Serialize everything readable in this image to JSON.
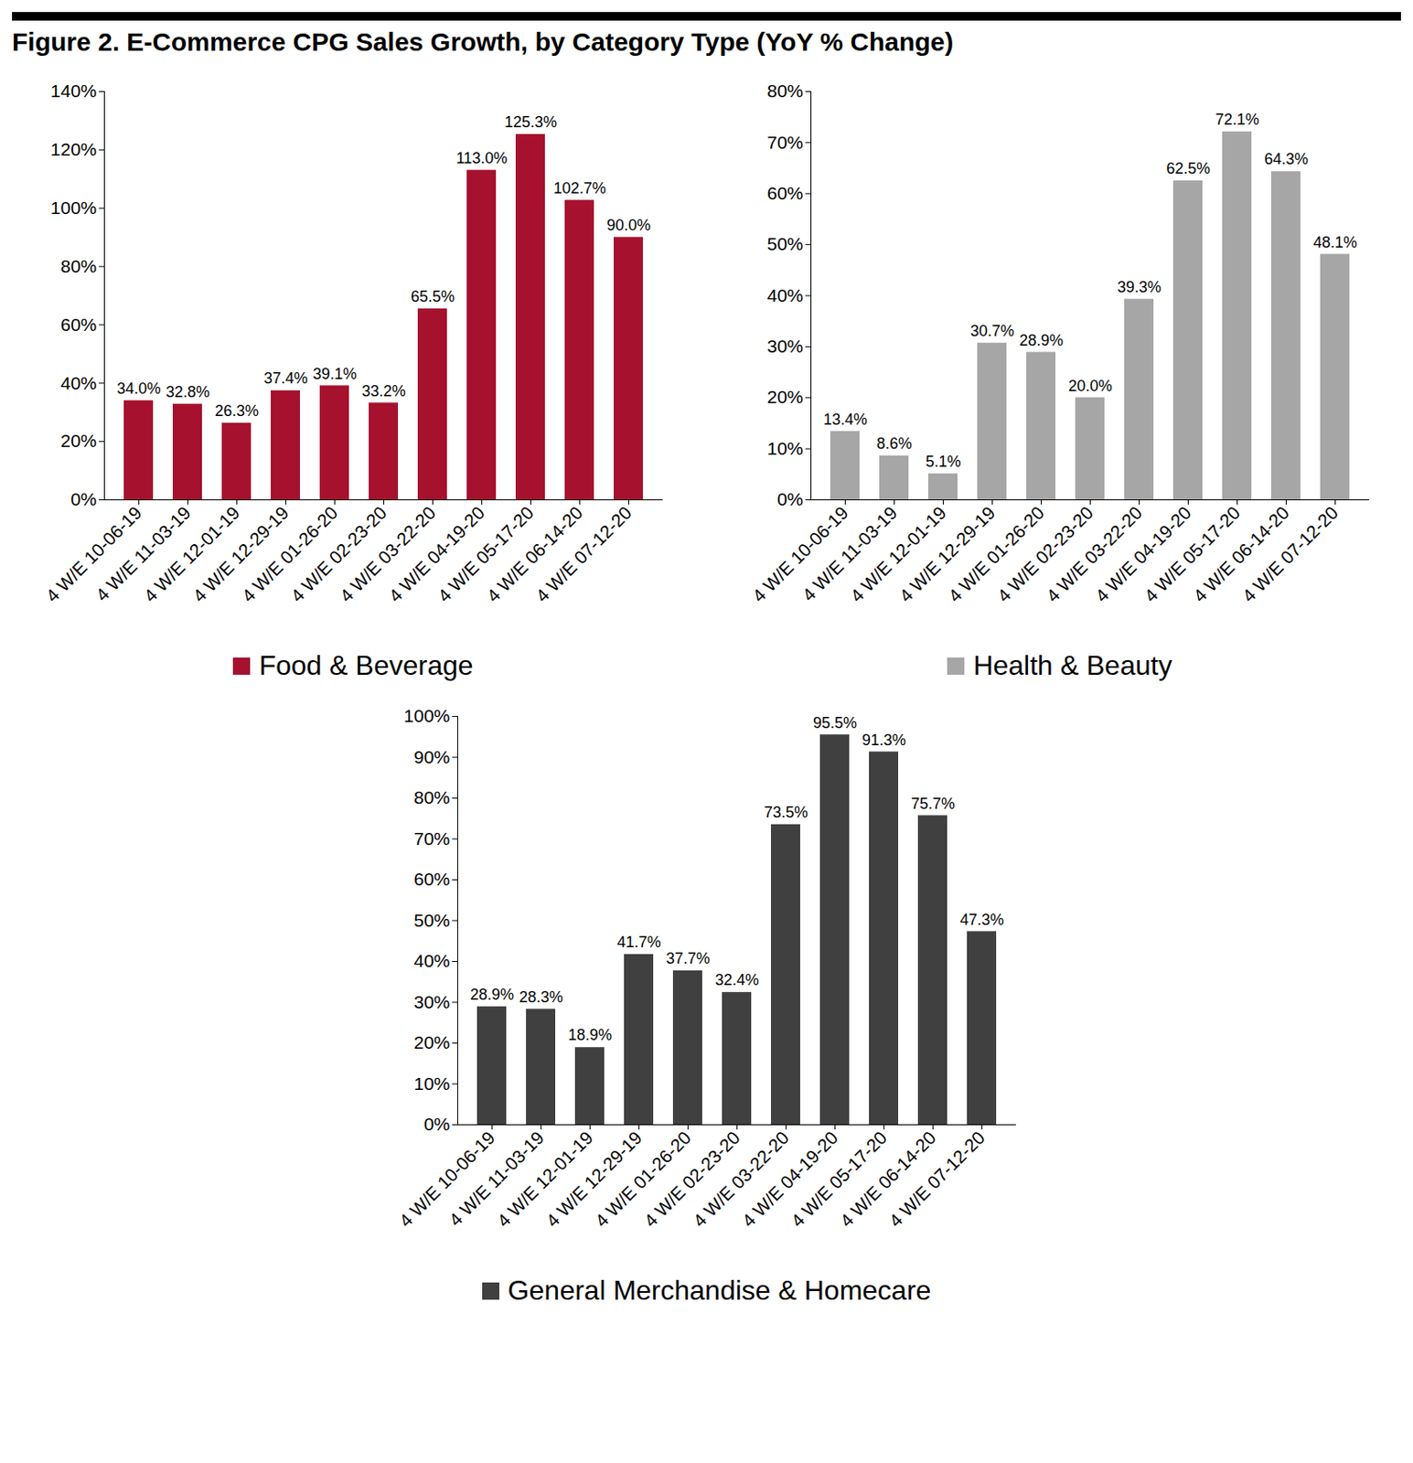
{
  "chart_data": [
    {
      "type": "bar",
      "title": "Figure 2. E-Commerce CPG Sales Growth, by Category Type (YoY % Change)",
      "categories": [
        "4 W/E 10-06-19",
        "4 W/E 11-03-19",
        "4 W/E 12-01-19",
        "4 W/E 12-29-19",
        "4 W/E 01-26-20",
        "4 W/E 02-23-20",
        "4 W/E 03-22-20",
        "4 W/E 04-19-20",
        "4 W/E 05-17-20",
        "4 W/E 06-14-20",
        "4 W/E 07-12-20"
      ],
      "series": [
        {
          "name": "Food & Beverage",
          "color": "#a6112e",
          "values": [
            34.0,
            32.8,
            26.3,
            37.4,
            39.1,
            33.2,
            65.5,
            113.0,
            125.3,
            102.7,
            90.0
          ],
          "value_labels": [
            "34.0%",
            "32.8%",
            "26.3%",
            "37.4%",
            "39.1%",
            "33.2%",
            "65.5%",
            "113.0%",
            "125.3%",
            "102.7%",
            "90.0%"
          ]
        }
      ],
      "ylim": [
        0,
        140
      ],
      "yticks": [
        {
          "value": 0,
          "label": "0%"
        },
        {
          "value": 20,
          "label": "20%"
        },
        {
          "value": 40,
          "label": "40%"
        },
        {
          "value": 60,
          "label": "60%"
        },
        {
          "value": 80,
          "label": "80%"
        },
        {
          "value": 100,
          "label": "100%"
        },
        {
          "value": 120,
          "label": "120%"
        },
        {
          "value": 140,
          "label": "140%"
        }
      ],
      "grid": false,
      "legend": "bottom",
      "data_labels": true
    },
    {
      "type": "bar",
      "categories": [
        "4 W/E 10-06-19",
        "4 W/E 11-03-19",
        "4 W/E 12-01-19",
        "4 W/E 12-29-19",
        "4 W/E 01-26-20",
        "4 W/E 02-23-20",
        "4 W/E 03-22-20",
        "4 W/E 04-19-20",
        "4 W/E 05-17-20",
        "4 W/E 06-14-20",
        "4 W/E 07-12-20"
      ],
      "series": [
        {
          "name": "Health & Beauty",
          "color": "#a6a6a6",
          "values": [
            13.4,
            8.6,
            5.1,
            30.7,
            28.9,
            20.0,
            39.3,
            62.5,
            72.1,
            64.3,
            48.1
          ],
          "value_labels": [
            "13.4%",
            "8.6%",
            "5.1%",
            "30.7%",
            "28.9%",
            "20.0%",
            "39.3%",
            "62.5%",
            "72.1%",
            "64.3%",
            "48.1%"
          ]
        }
      ],
      "ylim": [
        0,
        80
      ],
      "yticks": [
        {
          "value": 0,
          "label": "0%"
        },
        {
          "value": 10,
          "label": "10%"
        },
        {
          "value": 20,
          "label": "20%"
        },
        {
          "value": 30,
          "label": "30%"
        },
        {
          "value": 40,
          "label": "40%"
        },
        {
          "value": 50,
          "label": "50%"
        },
        {
          "value": 60,
          "label": "60%"
        },
        {
          "value": 70,
          "label": "70%"
        },
        {
          "value": 80,
          "label": "80%"
        }
      ],
      "grid": false,
      "legend": "bottom",
      "data_labels": true
    },
    {
      "type": "bar",
      "categories": [
        "4 W/E 10-06-19",
        "4 W/E 11-03-19",
        "4 W/E 12-01-19",
        "4 W/E 12-29-19",
        "4 W/E 01-26-20",
        "4 W/E 02-23-20",
        "4 W/E 03-22-20",
        "4 W/E 04-19-20",
        "4 W/E 05-17-20",
        "4 W/E 06-14-20",
        "4 W/E 07-12-20"
      ],
      "series": [
        {
          "name": "General Merchandise & Homecare",
          "color": "#404040",
          "values": [
            28.9,
            28.3,
            18.9,
            41.7,
            37.7,
            32.4,
            73.5,
            95.5,
            91.3,
            75.7,
            47.3
          ],
          "value_labels": [
            "28.9%",
            "28.3%",
            "18.9%",
            "41.7%",
            "37.7%",
            "32.4%",
            "73.5%",
            "95.5%",
            "91.3%",
            "75.7%",
            "47.3%"
          ]
        }
      ],
      "ylim": [
        0,
        100
      ],
      "yticks": [
        {
          "value": 0,
          "label": "0%"
        },
        {
          "value": 10,
          "label": "10%"
        },
        {
          "value": 20,
          "label": "20%"
        },
        {
          "value": 30,
          "label": "30%"
        },
        {
          "value": 40,
          "label": "40%"
        },
        {
          "value": 50,
          "label": "50%"
        },
        {
          "value": 60,
          "label": "60%"
        },
        {
          "value": 70,
          "label": "70%"
        },
        {
          "value": 80,
          "label": "80%"
        },
        {
          "value": 90,
          "label": "90%"
        },
        {
          "value": 100,
          "label": "100%"
        }
      ],
      "grid": false,
      "legend": "bottom",
      "data_labels": true
    }
  ]
}
